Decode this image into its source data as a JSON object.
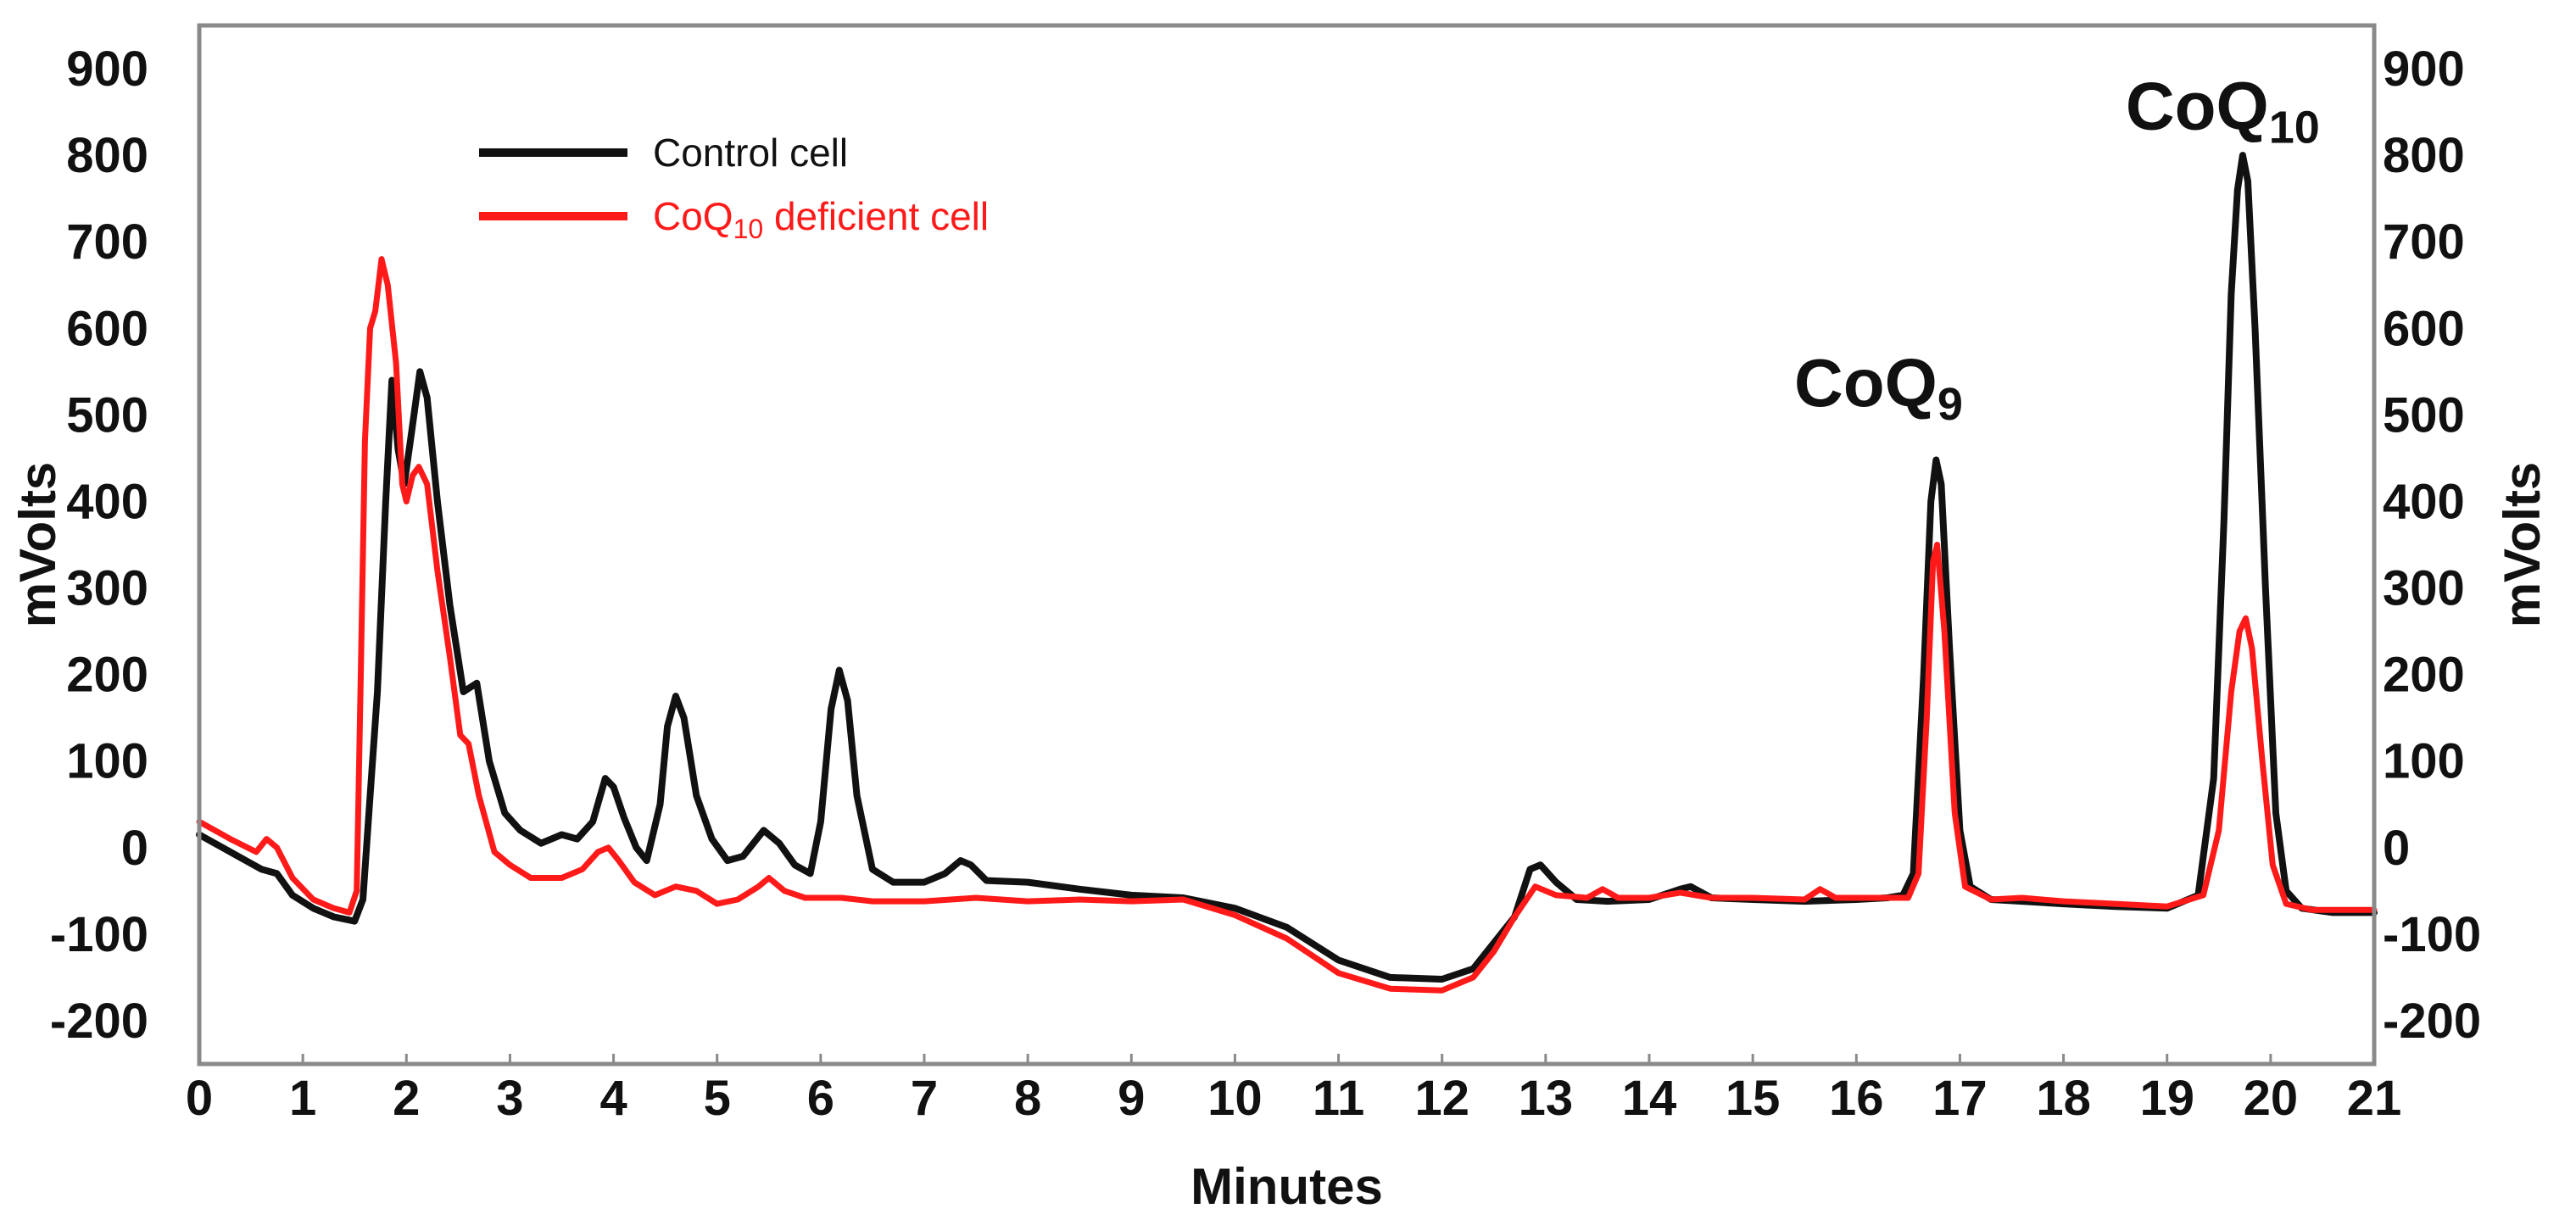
{
  "chart_data": {
    "type": "line",
    "xlabel": "Minutes",
    "ylabel": "mVolts",
    "ylabel_right": "mVolts",
    "xlim": [
      0,
      21
    ],
    "ylim": [
      -250,
      950
    ],
    "x_ticks": [
      "0",
      "1",
      "2",
      "3",
      "4",
      "5",
      "6",
      "7",
      "8",
      "9",
      "10",
      "11",
      "12",
      "13",
      "14",
      "15",
      "16",
      "17",
      "18",
      "19",
      "20",
      "21"
    ],
    "y_ticks": [
      "900",
      "800",
      "700",
      "600",
      "500",
      "400",
      "300",
      "200",
      "100",
      "0",
      "-100",
      "-200"
    ],
    "y_tick_values": [
      900,
      800,
      700,
      600,
      500,
      400,
      300,
      200,
      100,
      0,
      -100,
      -200
    ],
    "grid": false,
    "legend_position": "top-left",
    "legend": [
      {
        "main": "Control cell",
        "sub": "",
        "rest": ""
      },
      {
        "main": "CoQ",
        "sub": "10",
        "rest": " deficient cell"
      }
    ],
    "annotations": [
      {
        "main": "CoQ",
        "sub": "9",
        "x": 15.4,
        "y": 510
      },
      {
        "main": "CoQ",
        "sub": "10",
        "x": 18.6,
        "y": 830
      }
    ],
    "series": [
      {
        "name": "Control cell",
        "color": "#111111",
        "points": [
          [
            0,
            15
          ],
          [
            0.3,
            -5
          ],
          [
            0.6,
            -25
          ],
          [
            0.75,
            -30
          ],
          [
            0.9,
            -55
          ],
          [
            1.1,
            -70
          ],
          [
            1.3,
            -80
          ],
          [
            1.5,
            -85
          ],
          [
            1.58,
            -60
          ],
          [
            1.65,
            60
          ],
          [
            1.72,
            180
          ],
          [
            1.8,
            400
          ],
          [
            1.86,
            540
          ],
          [
            1.92,
            460
          ],
          [
            1.98,
            420
          ],
          [
            2.05,
            480
          ],
          [
            2.13,
            550
          ],
          [
            2.2,
            520
          ],
          [
            2.3,
            400
          ],
          [
            2.42,
            280
          ],
          [
            2.55,
            180
          ],
          [
            2.68,
            190
          ],
          [
            2.8,
            100
          ],
          [
            2.95,
            40
          ],
          [
            3.1,
            20
          ],
          [
            3.3,
            5
          ],
          [
            3.5,
            15
          ],
          [
            3.65,
            10
          ],
          [
            3.8,
            30
          ],
          [
            3.92,
            80
          ],
          [
            4.0,
            70
          ],
          [
            4.1,
            35
          ],
          [
            4.22,
            0
          ],
          [
            4.32,
            -15
          ],
          [
            4.45,
            50
          ],
          [
            4.52,
            140
          ],
          [
            4.6,
            175
          ],
          [
            4.68,
            150
          ],
          [
            4.8,
            60
          ],
          [
            4.95,
            10
          ],
          [
            5.1,
            -15
          ],
          [
            5.25,
            -10
          ],
          [
            5.45,
            20
          ],
          [
            5.6,
            5
          ],
          [
            5.75,
            -20
          ],
          [
            5.9,
            -30
          ],
          [
            6.0,
            30
          ],
          [
            6.1,
            160
          ],
          [
            6.18,
            205
          ],
          [
            6.26,
            170
          ],
          [
            6.35,
            60
          ],
          [
            6.5,
            -25
          ],
          [
            6.7,
            -40
          ],
          [
            7.0,
            -40
          ],
          [
            7.2,
            -30
          ],
          [
            7.35,
            -15
          ],
          [
            7.45,
            -20
          ],
          [
            7.6,
            -38
          ],
          [
            8.0,
            -40
          ],
          [
            8.5,
            -48
          ],
          [
            9.0,
            -55
          ],
          [
            9.5,
            -58
          ],
          [
            10.0,
            -70
          ],
          [
            10.5,
            -92
          ],
          [
            11.0,
            -130
          ],
          [
            11.5,
            -150
          ],
          [
            12.0,
            -152
          ],
          [
            12.3,
            -140
          ],
          [
            12.5,
            -110
          ],
          [
            12.7,
            -80
          ],
          [
            12.85,
            -25
          ],
          [
            12.95,
            -20
          ],
          [
            13.1,
            -40
          ],
          [
            13.3,
            -60
          ],
          [
            13.6,
            -62
          ],
          [
            14.0,
            -60
          ],
          [
            14.3,
            -48
          ],
          [
            14.4,
            -45
          ],
          [
            14.6,
            -58
          ],
          [
            15.0,
            -60
          ],
          [
            15.5,
            -62
          ],
          [
            16.0,
            -60
          ],
          [
            16.3,
            -58
          ],
          [
            16.45,
            -55
          ],
          [
            16.55,
            -30
          ],
          [
            16.65,
            200
          ],
          [
            16.72,
            400
          ],
          [
            16.77,
            448
          ],
          [
            16.82,
            420
          ],
          [
            16.9,
            230
          ],
          [
            17.0,
            20
          ],
          [
            17.1,
            -45
          ],
          [
            17.3,
            -60
          ],
          [
            17.6,
            -62
          ],
          [
            18.0,
            -65
          ],
          [
            18.5,
            -68
          ],
          [
            19.0,
            -70
          ],
          [
            19.3,
            -55
          ],
          [
            19.45,
            80
          ],
          [
            19.55,
            380
          ],
          [
            19.62,
            640
          ],
          [
            19.68,
            760
          ],
          [
            19.73,
            800
          ],
          [
            19.78,
            770
          ],
          [
            19.85,
            600
          ],
          [
            19.95,
            300
          ],
          [
            20.05,
            40
          ],
          [
            20.15,
            -50
          ],
          [
            20.3,
            -70
          ],
          [
            20.6,
            -75
          ],
          [
            21,
            -75
          ]
        ]
      },
      {
        "name": "CoQ10 deficient cell",
        "color": "#ff1a1a",
        "points": [
          [
            0,
            30
          ],
          [
            0.3,
            10
          ],
          [
            0.55,
            -5
          ],
          [
            0.65,
            10
          ],
          [
            0.75,
            0
          ],
          [
            0.9,
            -35
          ],
          [
            1.1,
            -60
          ],
          [
            1.3,
            -70
          ],
          [
            1.45,
            -75
          ],
          [
            1.52,
            -50
          ],
          [
            1.56,
            200
          ],
          [
            1.6,
            470
          ],
          [
            1.65,
            600
          ],
          [
            1.7,
            620
          ],
          [
            1.76,
            680
          ],
          [
            1.82,
            650
          ],
          [
            1.9,
            560
          ],
          [
            1.96,
            420
          ],
          [
            2.0,
            400
          ],
          [
            2.06,
            430
          ],
          [
            2.12,
            440
          ],
          [
            2.2,
            420
          ],
          [
            2.3,
            320
          ],
          [
            2.42,
            220
          ],
          [
            2.52,
            130
          ],
          [
            2.6,
            120
          ],
          [
            2.7,
            60
          ],
          [
            2.85,
            -5
          ],
          [
            3.0,
            -20
          ],
          [
            3.2,
            -35
          ],
          [
            3.5,
            -35
          ],
          [
            3.7,
            -25
          ],
          [
            3.85,
            -5
          ],
          [
            3.95,
            0
          ],
          [
            4.05,
            -15
          ],
          [
            4.2,
            -40
          ],
          [
            4.4,
            -55
          ],
          [
            4.6,
            -45
          ],
          [
            4.8,
            -50
          ],
          [
            5.0,
            -65
          ],
          [
            5.2,
            -60
          ],
          [
            5.4,
            -45
          ],
          [
            5.5,
            -35
          ],
          [
            5.65,
            -50
          ],
          [
            5.85,
            -58
          ],
          [
            6.2,
            -58
          ],
          [
            6.5,
            -62
          ],
          [
            7.0,
            -62
          ],
          [
            7.5,
            -58
          ],
          [
            8.0,
            -62
          ],
          [
            8.5,
            -60
          ],
          [
            9.0,
            -62
          ],
          [
            9.5,
            -60
          ],
          [
            10.0,
            -78
          ],
          [
            10.5,
            -105
          ],
          [
            11.0,
            -145
          ],
          [
            11.5,
            -163
          ],
          [
            12.0,
            -165
          ],
          [
            12.3,
            -150
          ],
          [
            12.5,
            -120
          ],
          [
            12.7,
            -80
          ],
          [
            12.9,
            -45
          ],
          [
            13.1,
            -55
          ],
          [
            13.4,
            -58
          ],
          [
            13.55,
            -48
          ],
          [
            13.7,
            -58
          ],
          [
            14.0,
            -58
          ],
          [
            14.3,
            -52
          ],
          [
            14.6,
            -58
          ],
          [
            15.0,
            -58
          ],
          [
            15.5,
            -60
          ],
          [
            15.65,
            -48
          ],
          [
            15.8,
            -58
          ],
          [
            16.2,
            -58
          ],
          [
            16.5,
            -58
          ],
          [
            16.6,
            -30
          ],
          [
            16.68,
            150
          ],
          [
            16.74,
            330
          ],
          [
            16.78,
            350
          ],
          [
            16.85,
            250
          ],
          [
            16.95,
            40
          ],
          [
            17.05,
            -45
          ],
          [
            17.3,
            -60
          ],
          [
            17.6,
            -58
          ],
          [
            18.0,
            -62
          ],
          [
            18.5,
            -65
          ],
          [
            19.0,
            -68
          ],
          [
            19.35,
            -55
          ],
          [
            19.5,
            20
          ],
          [
            19.62,
            180
          ],
          [
            19.7,
            250
          ],
          [
            19.76,
            265
          ],
          [
            19.82,
            230
          ],
          [
            19.92,
            100
          ],
          [
            20.02,
            -20
          ],
          [
            20.15,
            -65
          ],
          [
            20.4,
            -72
          ],
          [
            20.8,
            -72
          ],
          [
            21,
            -72
          ]
        ]
      }
    ]
  }
}
